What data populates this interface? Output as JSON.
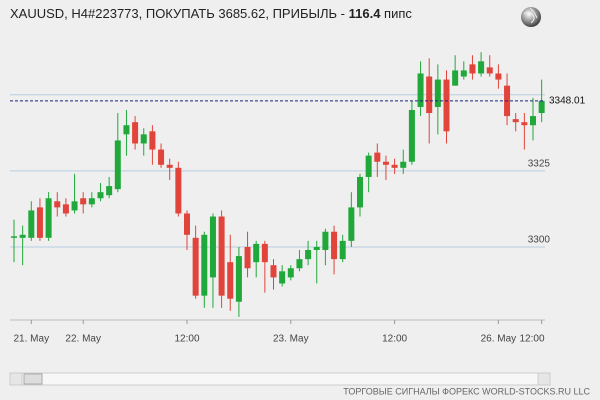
{
  "chart_data": {
    "type": "candlestick",
    "title": {
      "text": "XAUUSD, H4#223773, ПОКУПАТЬ 3685.62, ПРИБЫЛЬ - ",
      "profit": "116.4",
      "unit": " пипс"
    },
    "footer": "ТОРГОВЫЕ СИГНАЛЫ ФОРЕКС WORLD-STOCKS.RU LLC",
    "categories": [
      null,
      null,
      "21. May",
      null,
      null,
      null,
      null,
      null,
      "22. May",
      null,
      null,
      null,
      null,
      null,
      null,
      null,
      null,
      null,
      null,
      null,
      "12:00",
      null,
      null,
      null,
      null,
      null,
      null,
      null,
      null,
      null,
      null,
      null,
      "23. May",
      null,
      null,
      null,
      null,
      null,
      null,
      null,
      null,
      null,
      null,
      null,
      "12:00",
      null,
      null,
      null,
      null,
      null,
      null,
      null,
      null,
      null,
      null,
      null,
      "26. May",
      null,
      null,
      null,
      null,
      "12:00"
    ],
    "open": [
      3303,
      3303,
      3303,
      3313,
      3303,
      3315,
      3314,
      3312,
      3316,
      3314,
      3316,
      3317,
      3319,
      3337,
      3341,
      3334,
      3338,
      3332,
      3327,
      3326,
      3311,
      3303,
      3284,
      3290,
      3310,
      3295,
      3282,
      3300,
      3295,
      3301,
      3294,
      3288,
      3290,
      3293,
      3296,
      3299,
      3299,
      3305,
      3296,
      3302,
      3313,
      3323,
      3331,
      3328,
      3327,
      3326,
      3328,
      3346,
      3356,
      3346,
      3355,
      3353,
      3356,
      3360,
      3357,
      3359,
      3357,
      3353,
      3342,
      3341,
      3340,
      3344
    ],
    "high": [
      3309,
      3307,
      3315,
      3316,
      3318,
      3318,
      3316,
      3324,
      3318,
      3318,
      3321,
      3323,
      3344,
      3345,
      3343,
      3339,
      3340,
      3334,
      3329,
      3328,
      3312,
      3307,
      3305,
      3311,
      3312,
      3304,
      3300,
      3305,
      3302,
      3302,
      3296,
      3294,
      3294,
      3299,
      3302,
      3302,
      3306,
      3307,
      3304,
      3318,
      3324,
      3331,
      3334,
      3330,
      3329,
      3332,
      3348,
      3361,
      3362,
      3360,
      3358,
      3363,
      3361,
      3363,
      3364,
      3363,
      3360,
      3357,
      3344,
      3344,
      3349,
      3355
    ],
    "low": [
      3295,
      3294,
      3302,
      3302,
      3302,
      3310,
      3310,
      3311,
      3311,
      3313,
      3315,
      3316,
      3318,
      3330,
      3332,
      3330,
      3327,
      3326,
      3322,
      3310,
      3299,
      3283,
      3280,
      3280,
      3280,
      3279,
      3277,
      3290,
      3290,
      3285,
      3286,
      3287,
      3289,
      3292,
      3294,
      3288,
      3294,
      3291,
      3295,
      3300,
      3310,
      3318,
      3323,
      3322,
      3324,
      3324,
      3327,
      3343,
      3334,
      3337,
      3334,
      3353,
      3355,
      3355,
      3356,
      3356,
      3352,
      3340,
      3338,
      3332,
      3335,
      3341
    ],
    "close": [
      3303.5,
      3304,
      3312,
      3303,
      3316,
      3313,
      3311,
      3315,
      3314,
      3316,
      3318,
      3320,
      3335,
      3340,
      3334,
      3337,
      3332,
      3327,
      3326,
      3311,
      3304,
      3284,
      3304,
      3310,
      3284,
      3283,
      3297,
      3293,
      3301,
      3295,
      3290,
      3292,
      3293,
      3296,
      3299,
      3300,
      3305,
      3296,
      3302,
      3313,
      3323,
      3330,
      3328,
      3327,
      3326,
      3328,
      3345,
      3357,
      3344,
      3355,
      3338,
      3358,
      3358,
      3357,
      3361,
      3357,
      3355,
      3343,
      3341,
      3340,
      3343,
      3348
    ],
    "up_color": "#21a83a",
    "down_color": "#e0443a",
    "ylim": [
      3276,
      3368
    ],
    "yticks": [
      3300,
      3325
    ],
    "ygrid": [
      3300,
      3325,
      3350
    ],
    "price_line": 3348.01
  }
}
